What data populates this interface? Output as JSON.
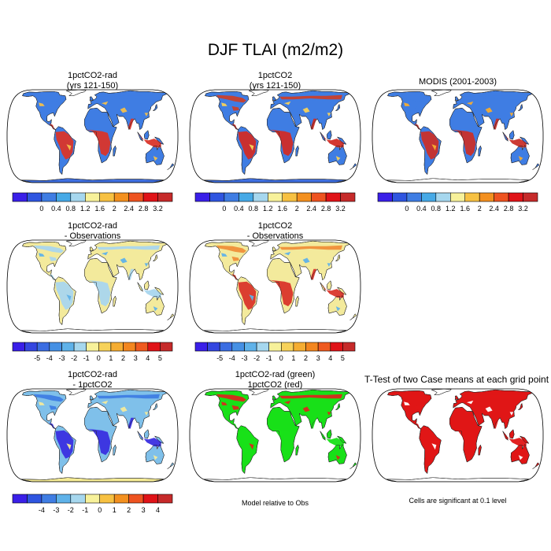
{
  "title": "DJF TLAI (m2/m2)",
  "panels": {
    "p1": {
      "title1": "1pctCO2-rad",
      "title2": "(yrs 121-150)"
    },
    "p2": {
      "title1": "1pctCO2",
      "title2": "(yrs 121-150)"
    },
    "p3": {
      "title1": "MODIS (2001-2003)",
      "title2": ""
    },
    "p4": {
      "title1": "1pctCO2-rad",
      "title2": "- Observations"
    },
    "p5": {
      "title1": "1pctCO2",
      "title2": "- Observations"
    },
    "p7": {
      "title1": "1pctCO2-rad",
      "title2": "- 1pctCO2"
    },
    "p8": {
      "title1": "1pctCO2-rad (green)",
      "title2": "1pctCO2 (red)"
    },
    "p9": {
      "title1": "T-Test of two Case means at each grid point",
      "title2": ""
    }
  },
  "notes": {
    "model_relative": "Model relative to Obs",
    "significance": "Cells are significant at 0.1 level"
  },
  "colorbars": {
    "absolute": {
      "labels": [
        "0",
        "0.4",
        "0.8",
        "1.2",
        "1.6",
        "2",
        "2.4",
        "2.8",
        "3.2"
      ],
      "colors": [
        "#3a1fe8",
        "#2f55e0",
        "#3f7de3",
        "#46a9e6",
        "#a6d7ee",
        "#f7f19a",
        "#f7c142",
        "#f3901f",
        "#ee5320",
        "#e01318",
        "#c62a2a"
      ]
    },
    "diff_obs": {
      "labels": [
        "-5",
        "-4",
        "-3",
        "-2",
        "-1",
        "0",
        "1",
        "2",
        "3",
        "4",
        "5"
      ],
      "colors": [
        "#3a1fe8",
        "#3446e0",
        "#3b6de2",
        "#4590e4",
        "#5fb2e9",
        "#a6d7ee",
        "#f7f19a",
        "#f7d25a",
        "#f5ad32",
        "#f3861f",
        "#ef5a20",
        "#e01318",
        "#c62a2a"
      ]
    },
    "diff_case": {
      "labels": [
        "-4",
        "-3",
        "-2",
        "-1",
        "0",
        "1",
        "2",
        "3",
        "4"
      ],
      "colors": [
        "#3a1fe8",
        "#2f55e0",
        "#3f7de3",
        "#5fb2e9",
        "#a6d7ee",
        "#f7f19a",
        "#f7c142",
        "#f3901f",
        "#ee5320",
        "#e01318",
        "#c62a2a"
      ]
    }
  },
  "map_colors": {
    "p1": {
      "land": "#3f7de3",
      "tropics": "#d9352a",
      "boreal": "#3f7de3",
      "antarctica": "#3f6fe0",
      "spots": "#f3c04a"
    },
    "p2": {
      "land": "#3f7de3",
      "tropics": "#d12c26",
      "boreal": "#c9402c",
      "antarctica": "#3f6fe0",
      "spots": "#f7d25a"
    },
    "p3": {
      "land": "#3f7de3",
      "tropics": "#c9302a",
      "boreal": "#3f7de3",
      "antarctica": "",
      "spots": "#f5ad32"
    },
    "p4": {
      "land": "#f3ea9c",
      "tropics": "#a9d6ee",
      "boreal": "#a9d6ee",
      "antarctica": "",
      "spots": "#5fb2e9"
    },
    "p5": {
      "land": "#f3ea9c",
      "tropics": "#d9352a",
      "boreal": "#ef8f3a",
      "antarctica": "",
      "spots": "#5fb2e9"
    },
    "p7": {
      "land": "#7fc0ea",
      "tropics": "#3a2fe0",
      "boreal": "#3f7de3",
      "antarctica": "#f6ec95",
      "spots": "#f3ea9c"
    },
    "p8": {
      "land": "#18e018",
      "tropics": "#18e018",
      "boreal": "#d8281e",
      "antarctica": "",
      "spots": "#d8281e"
    },
    "p9": {
      "land": "#e01616",
      "tropics": "#e01616",
      "boreal": "#e01616",
      "antarctica": "",
      "spots": "#ffffff"
    }
  }
}
